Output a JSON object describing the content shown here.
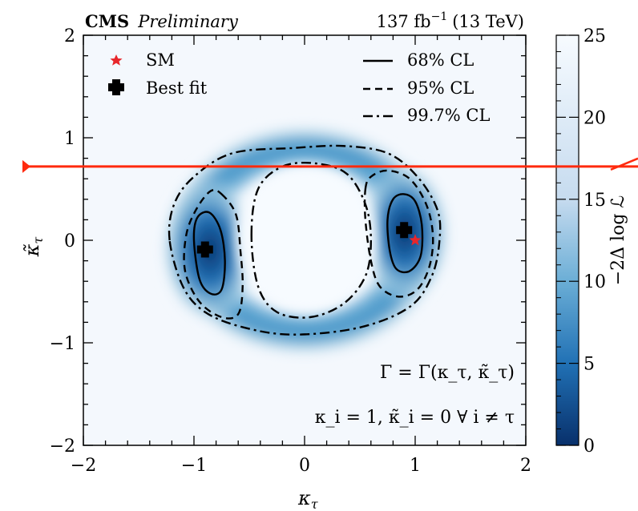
{
  "chart_data": {
    "type": "heatmap",
    "header": {
      "experiment": "CMS",
      "status": "Preliminary",
      "lumi": "137 fb",
      "lumi_exp": "−1",
      "energy": "(13 TeV)"
    },
    "xlabel": "κ",
    "xlabel_sub": "τ",
    "ylabel": "κ̃",
    "ylabel_sub": "τ",
    "xlim": [
      -2,
      2
    ],
    "ylim": [
      -2,
      2
    ],
    "xticks": [
      -2,
      -1,
      0,
      1,
      2
    ],
    "yticks": [
      -2,
      -1,
      0,
      1,
      2
    ],
    "xtick_labels": [
      "−2",
      "−1",
      "0",
      "1",
      "2"
    ],
    "ytick_labels": [
      "−2",
      "−1",
      "0",
      "1",
      "2"
    ],
    "colorbar": {
      "label": "−2Δ log ℒ",
      "range": [
        0,
        25
      ],
      "ticks": [
        0,
        5,
        10,
        15,
        20,
        25
      ],
      "tick_labels": [
        "0",
        "5",
        "10",
        "15",
        "20",
        "25"
      ],
      "color_low": "#08306b",
      "color_high": "#f7fbff"
    },
    "legend": {
      "placement": "top",
      "markers": [
        {
          "label": "SM",
          "symbol": "star",
          "color": "#e8262b"
        },
        {
          "label": "Best fit",
          "symbol": "plus",
          "color": "#000000"
        }
      ],
      "lines": [
        {
          "label": "68% CL",
          "style": "solid"
        },
        {
          "label": "95% CL",
          "style": "dashed"
        },
        {
          "label": "99.7% CL",
          "style": "dashdot"
        }
      ]
    },
    "sm_point": {
      "x": 1.0,
      "y": 0.0
    },
    "best_fit": [
      {
        "x": 0.9,
        "y": 0.1
      },
      {
        "x": -0.9,
        "y": -0.09
      }
    ],
    "contours": [
      {
        "level": "68% CL",
        "style": "solid",
        "region": "right",
        "points": [
          [
            0.75,
            0.2
          ],
          [
            0.8,
            0.4
          ],
          [
            0.9,
            0.45
          ],
          [
            1.0,
            0.38
          ],
          [
            1.06,
            0.15
          ],
          [
            1.05,
            -0.15
          ],
          [
            0.95,
            -0.3
          ],
          [
            0.83,
            -0.28
          ],
          [
            0.77,
            -0.1
          ]
        ]
      },
      {
        "level": "68% CL",
        "style": "solid",
        "region": "left",
        "points": [
          [
            -1.0,
            0.0
          ],
          [
            -0.97,
            0.22
          ],
          [
            -0.86,
            0.27
          ],
          [
            -0.76,
            0.1
          ],
          [
            -0.72,
            -0.2
          ],
          [
            -0.75,
            -0.48
          ],
          [
            -0.85,
            -0.52
          ],
          [
            -0.95,
            -0.38
          ]
        ]
      },
      {
        "level": "95% CL",
        "style": "dashed",
        "region": "right",
        "points": [
          [
            0.55,
            0.5
          ],
          [
            0.6,
            0.62
          ],
          [
            0.75,
            0.68
          ],
          [
            0.95,
            0.6
          ],
          [
            1.1,
            0.35
          ],
          [
            1.16,
            0.05
          ],
          [
            1.13,
            -0.25
          ],
          [
            1.02,
            -0.48
          ],
          [
            0.85,
            -0.55
          ],
          [
            0.68,
            -0.45
          ],
          [
            0.6,
            -0.2
          ],
          [
            0.55,
            0.2
          ]
        ]
      },
      {
        "level": "95% CL",
        "style": "dashed",
        "region": "left",
        "points": [
          [
            -0.75,
            0.45
          ],
          [
            -0.62,
            0.25
          ],
          [
            -0.58,
            -0.1
          ],
          [
            -0.56,
            -0.45
          ],
          [
            -0.6,
            -0.72
          ],
          [
            -0.75,
            -0.75
          ],
          [
            -0.95,
            -0.6
          ],
          [
            -1.08,
            -0.3
          ],
          [
            -1.07,
            0.05
          ],
          [
            -0.98,
            0.3
          ],
          [
            -0.85,
            0.48
          ]
        ]
      },
      {
        "level": "99.7% CL",
        "style": "dashdot",
        "region": "outer",
        "points": [
          [
            -1.22,
            0.0
          ],
          [
            -1.18,
            0.35
          ],
          [
            -1.0,
            0.62
          ],
          [
            -0.65,
            0.85
          ],
          [
            -0.1,
            0.9
          ],
          [
            0.35,
            0.92
          ],
          [
            0.75,
            0.85
          ],
          [
            1.02,
            0.62
          ],
          [
            1.2,
            0.3
          ],
          [
            1.22,
            0.0
          ],
          [
            1.15,
            -0.35
          ],
          [
            0.95,
            -0.65
          ],
          [
            0.5,
            -0.85
          ],
          [
            -0.1,
            -0.92
          ],
          [
            -0.55,
            -0.85
          ],
          [
            -0.9,
            -0.7
          ],
          [
            -1.1,
            -0.45
          ]
        ]
      },
      {
        "level": "99.7% CL",
        "style": "dashdot",
        "region": "inner",
        "points": [
          [
            -0.48,
            0.05
          ],
          [
            -0.42,
            0.5
          ],
          [
            -0.2,
            0.72
          ],
          [
            0.1,
            0.75
          ],
          [
            0.38,
            0.65
          ],
          [
            0.55,
            0.35
          ],
          [
            0.6,
            0.0
          ],
          [
            0.55,
            -0.35
          ],
          [
            0.35,
            -0.62
          ],
          [
            0.05,
            -0.75
          ],
          [
            -0.25,
            -0.7
          ],
          [
            -0.42,
            -0.45
          ]
        ]
      }
    ],
    "annotations": [
      "Γ = Γ(κ_τ, κ̃_τ)",
      "κ_i = 1, κ̃_i = 0 ∀ i ≠ τ"
    ],
    "overlay_line": {
      "y": 0.72,
      "color": "#ff2a0e"
    }
  }
}
